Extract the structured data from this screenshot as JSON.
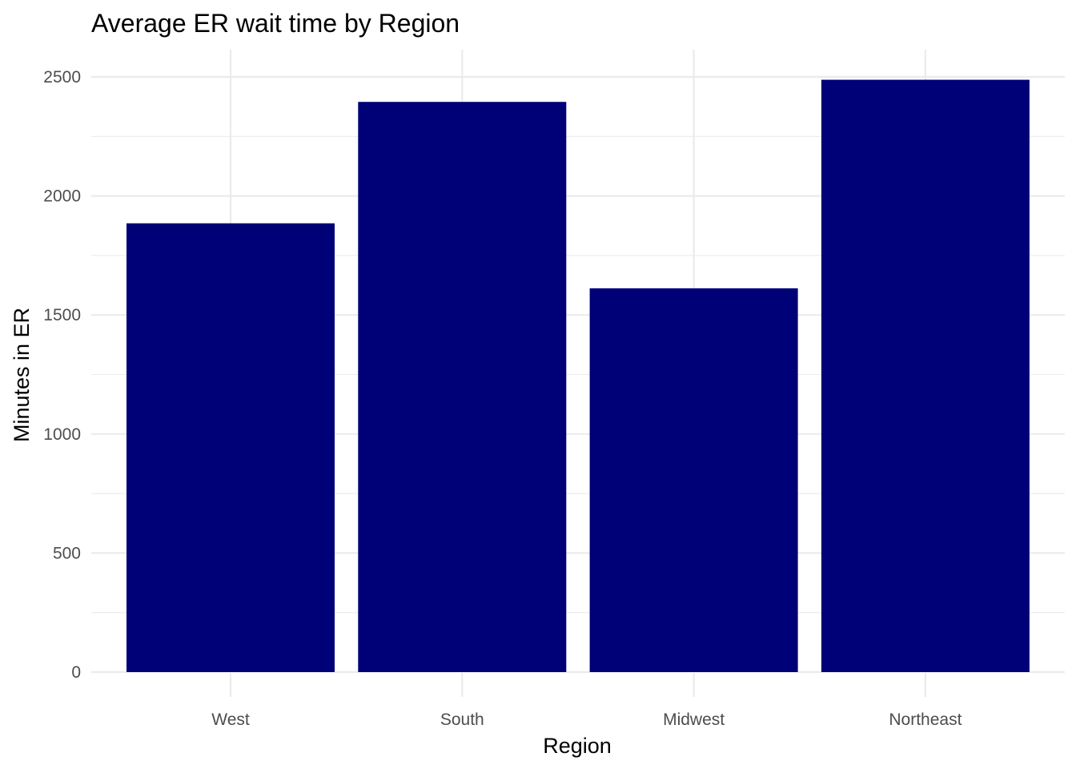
{
  "chart_data": {
    "type": "bar",
    "title": "Average ER wait time by Region",
    "xlabel": "Region",
    "ylabel": "Minutes in ER",
    "categories": [
      "West",
      "South",
      "Midwest",
      "Northeast"
    ],
    "values": [
      1885,
      2395,
      1612,
      2488
    ],
    "ylim": [
      0,
      2600
    ],
    "yticks": [
      0,
      500,
      1000,
      1500,
      2000,
      2500
    ],
    "ytick_labels": [
      "0",
      "500",
      "1000",
      "1500",
      "2000",
      "2500"
    ],
    "grid": true,
    "legend": "none",
    "bar_color": "#000077"
  }
}
